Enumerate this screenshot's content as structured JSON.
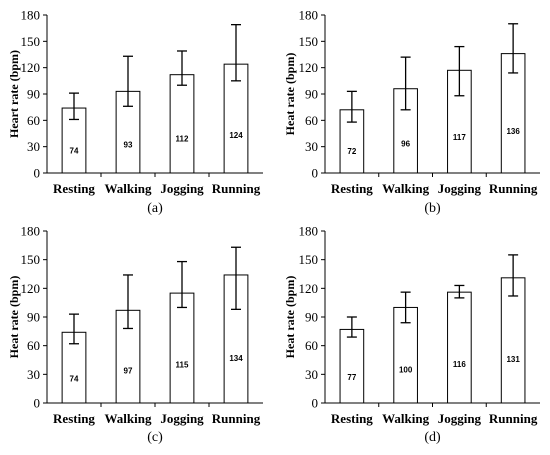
{
  "chart_data": [
    {
      "type": "bar",
      "panel_label": "(a)",
      "ylabel": "Heart rate (bpm)",
      "categories": [
        "Resting",
        "Walking",
        "Jogging",
        "Running"
      ],
      "values": [
        74,
        93,
        112,
        124
      ],
      "value_labels": [
        "74",
        "93",
        "112",
        "124"
      ],
      "error_low": [
        61,
        76,
        100,
        105
      ],
      "error_high": [
        91,
        133,
        139,
        169
      ],
      "ylim": [
        0,
        180
      ],
      "yticks": [
        "0",
        "30",
        "60",
        "90",
        "120",
        "150",
        "180"
      ],
      "grid": false,
      "bar_fill": "#ffffff",
      "bar_stroke": "#000000"
    },
    {
      "type": "bar",
      "panel_label": "(b)",
      "ylabel": "Heat rate (bpm)",
      "categories": [
        "Resting",
        "Walking",
        "Jogging",
        "Running"
      ],
      "values": [
        72,
        96,
        117,
        136
      ],
      "value_labels": [
        "72",
        "96",
        "117",
        "136"
      ],
      "error_low": [
        58,
        72,
        88,
        114
      ],
      "error_high": [
        93,
        132,
        144,
        170
      ],
      "ylim": [
        0,
        180
      ],
      "yticks": [
        "0",
        "30",
        "60",
        "90",
        "120",
        "150",
        "180"
      ],
      "grid": false,
      "bar_fill": "#ffffff",
      "bar_stroke": "#000000"
    },
    {
      "type": "bar",
      "panel_label": "(c)",
      "ylabel": "Heat rate (bpm)",
      "categories": [
        "Resting",
        "Walking",
        "Jogging",
        "Running"
      ],
      "values": [
        74,
        97,
        115,
        134
      ],
      "value_labels": [
        "74",
        "97",
        "115",
        "134"
      ],
      "error_low": [
        62,
        78,
        100,
        98
      ],
      "error_high": [
        93,
        134,
        148,
        163
      ],
      "ylim": [
        0,
        180
      ],
      "yticks": [
        "0",
        "30",
        "60",
        "90",
        "120",
        "150",
        "180"
      ],
      "grid": false,
      "bar_fill": "#ffffff",
      "bar_stroke": "#000000"
    },
    {
      "type": "bar",
      "panel_label": "(d)",
      "ylabel": "Heat rate (bpm)",
      "categories": [
        "Resting",
        "Walking",
        "Jogging",
        "Running"
      ],
      "values": [
        77,
        100,
        116,
        131
      ],
      "value_labels": [
        "77",
        "100",
        "116",
        "131"
      ],
      "error_low": [
        69,
        84,
        110,
        112
      ],
      "error_high": [
        90,
        116,
        123,
        155
      ],
      "ylim": [
        0,
        180
      ],
      "yticks": [
        "0",
        "30",
        "60",
        "90",
        "120",
        "150",
        "180"
      ],
      "grid": false,
      "bar_fill": "#ffffff",
      "bar_stroke": "#000000"
    }
  ]
}
